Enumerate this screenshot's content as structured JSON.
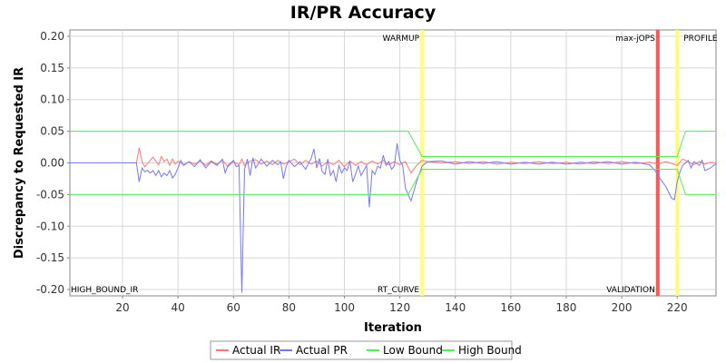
{
  "chart_data": {
    "type": "line",
    "title": "IR/PR Accuracy",
    "xlabel": "Iteration",
    "ylabel": "Discrepancy to Requested IR",
    "xlim": [
      1,
      234
    ],
    "ylim": [
      -0.21,
      0.21
    ],
    "xticks": [
      20,
      40,
      60,
      80,
      100,
      120,
      140,
      160,
      180,
      200,
      220
    ],
    "yticks": [
      -0.2,
      -0.15,
      -0.1,
      -0.05,
      0.0,
      0.05,
      0.1,
      0.15,
      0.2
    ],
    "grid": true,
    "legend_position": "bottom",
    "phase_markers": [
      {
        "label": "WARMUP",
        "x": 128,
        "color": "#ffff66",
        "label_pos": "top-left"
      },
      {
        "label": "RT_CURVE",
        "x": 128,
        "color": "#ffff66",
        "label_pos": "bottom-left"
      },
      {
        "label": "max-jOPS",
        "x": 213,
        "color": "#ff4444",
        "label_pos": "top-left"
      },
      {
        "label": "VALIDATION",
        "x": 213,
        "color": "#ff4444",
        "label_pos": "bottom-left"
      },
      {
        "label": "PROFILE",
        "x": 220,
        "color": "#ffff66",
        "label_pos": "top-right"
      },
      {
        "label": "HIGH_BOUND_IR",
        "x": 1,
        "color": "#000000",
        "label_pos": "bottom-right"
      }
    ],
    "series": [
      {
        "name": "Actual IR",
        "color": "#ff7777",
        "points": [
          [
            1,
            0
          ],
          [
            25,
            0
          ],
          [
            26,
            0.024
          ],
          [
            27,
            0.002
          ],
          [
            28,
            -0.006
          ],
          [
            30,
            0.004
          ],
          [
            31,
            0.009
          ],
          [
            32,
            0.003
          ],
          [
            33,
            -0.003
          ],
          [
            34,
            0.01
          ],
          [
            35,
            0.002
          ],
          [
            36,
            0.006
          ],
          [
            37,
            -0.004
          ],
          [
            38,
            0.006
          ],
          [
            39,
            -0.002
          ],
          [
            40,
            0.003
          ],
          [
            42,
            -0.003
          ],
          [
            44,
            0.002
          ],
          [
            46,
            -0.002
          ],
          [
            48,
            0.003
          ],
          [
            50,
            -0.004
          ],
          [
            52,
            0.003
          ],
          [
            54,
            -0.002
          ],
          [
            56,
            0.004
          ],
          [
            58,
            -0.006
          ],
          [
            60,
            0.002
          ],
          [
            62,
            -0.003
          ],
          [
            63,
            0.006
          ],
          [
            64,
            -0.004
          ],
          [
            66,
            0.003
          ],
          [
            68,
            0.005
          ],
          [
            70,
            -0.002
          ],
          [
            72,
            0.003
          ],
          [
            74,
            -0.003
          ],
          [
            76,
            0.004
          ],
          [
            78,
            -0.002
          ],
          [
            80,
            0.002
          ],
          [
            82,
            0.006
          ],
          [
            84,
            -0.003
          ],
          [
            86,
            0.004
          ],
          [
            88,
            -0.002
          ],
          [
            90,
            0.003
          ],
          [
            92,
            -0.005
          ],
          [
            94,
            0.002
          ],
          [
            96,
            -0.003
          ],
          [
            98,
            0.004
          ],
          [
            100,
            -0.006
          ],
          [
            102,
            0.003
          ],
          [
            104,
            -0.004
          ],
          [
            106,
            0.002
          ],
          [
            108,
            -0.003
          ],
          [
            110,
            0.003
          ],
          [
            112,
            -0.002
          ],
          [
            114,
            0.004
          ],
          [
            116,
            -0.003
          ],
          [
            118,
            0.002
          ],
          [
            120,
            -0.003
          ],
          [
            122,
            0.002
          ],
          [
            124,
            -0.016
          ],
          [
            126,
            -0.004
          ],
          [
            128,
            0.004
          ],
          [
            130,
            0.002
          ],
          [
            135,
            0
          ],
          [
            140,
            0.002
          ],
          [
            145,
            -0.001
          ],
          [
            150,
            0.002
          ],
          [
            155,
            -0.002
          ],
          [
            160,
            0.001
          ],
          [
            165,
            -0.001
          ],
          [
            170,
            0.002
          ],
          [
            175,
            -0.001
          ],
          [
            180,
            0.001
          ],
          [
            185,
            -0.002
          ],
          [
            190,
            0.002
          ],
          [
            195,
            -0.001
          ],
          [
            200,
            0.002
          ],
          [
            205,
            -0.001
          ],
          [
            210,
            0.001
          ],
          [
            213,
            -0.002
          ],
          [
            216,
            0.002
          ],
          [
            220,
            -0.004
          ],
          [
            222,
            0.006
          ],
          [
            224,
            0.002
          ],
          [
            226,
            -0.003
          ],
          [
            228,
            0.002
          ],
          [
            230,
            -0.002
          ],
          [
            232,
            0.001
          ],
          [
            234,
            0
          ]
        ]
      },
      {
        "name": "Actual PR",
        "color": "#7777ff",
        "points": [
          [
            1,
            0
          ],
          [
            25,
            0
          ],
          [
            26,
            -0.03
          ],
          [
            27,
            -0.008
          ],
          [
            28,
            -0.014
          ],
          [
            29,
            -0.012
          ],
          [
            30,
            -0.016
          ],
          [
            31,
            -0.012
          ],
          [
            32,
            -0.02
          ],
          [
            33,
            -0.012
          ],
          [
            34,
            -0.022
          ],
          [
            35,
            -0.016
          ],
          [
            36,
            -0.02
          ],
          [
            37,
            -0.012
          ],
          [
            38,
            -0.024
          ],
          [
            39,
            -0.018
          ],
          [
            40,
            -0.008
          ],
          [
            41,
            0.004
          ],
          [
            42,
            -0.004
          ],
          [
            44,
            0.002
          ],
          [
            46,
            -0.006
          ],
          [
            48,
            0.005
          ],
          [
            50,
            -0.008
          ],
          [
            52,
            0.002
          ],
          [
            54,
            -0.004
          ],
          [
            56,
            0.006
          ],
          [
            57,
            -0.016
          ],
          [
            58,
            -0.004
          ],
          [
            60,
            0.004
          ],
          [
            61,
            -0.006
          ],
          [
            62,
            -0.004
          ],
          [
            63,
            -0.205
          ],
          [
            64,
            -0.01
          ],
          [
            65,
            0.006
          ],
          [
            66,
            -0.02
          ],
          [
            67,
            0.008
          ],
          [
            68,
            -0.008
          ],
          [
            70,
            0.006
          ],
          [
            72,
            -0.005
          ],
          [
            74,
            0.004
          ],
          [
            76,
            -0.003
          ],
          [
            77,
            0.002
          ],
          [
            78,
            -0.025
          ],
          [
            79,
            -0.005
          ],
          [
            80,
            0.004
          ],
          [
            82,
            -0.006
          ],
          [
            84,
            0.002
          ],
          [
            86,
            -0.01
          ],
          [
            88,
            0.007
          ],
          [
            89,
            0.022
          ],
          [
            90,
            -0.008
          ],
          [
            91,
            0.007
          ],
          [
            92,
            -0.014
          ],
          [
            93,
            -0.018
          ],
          [
            94,
            0.006
          ],
          [
            95,
            -0.02
          ],
          [
            96,
            -0.012
          ],
          [
            97,
            -0.03
          ],
          [
            98,
            -0.004
          ],
          [
            99,
            -0.016
          ],
          [
            100,
            -0.008
          ],
          [
            101,
            -0.012
          ],
          [
            102,
            0.003
          ],
          [
            103,
            -0.03
          ],
          [
            104,
            -0.018
          ],
          [
            105,
            -0.005
          ],
          [
            106,
            -0.02
          ],
          [
            107,
            -0.012
          ],
          [
            108,
            -0.004
          ],
          [
            109,
            -0.07
          ],
          [
            110,
            -0.012
          ],
          [
            111,
            -0.018
          ],
          [
            112,
            -0.005
          ],
          [
            113,
            -0.008
          ],
          [
            114,
            0.012
          ],
          [
            115,
            -0.004
          ],
          [
            116,
            0.002
          ],
          [
            117,
            -0.01
          ],
          [
            118,
            -0.005
          ],
          [
            119,
            0.031
          ],
          [
            120,
            0.004
          ],
          [
            121,
            -0.004
          ],
          [
            122,
            -0.04
          ],
          [
            123,
            -0.05
          ],
          [
            124,
            -0.06
          ],
          [
            126,
            -0.03
          ],
          [
            128,
            -0.005
          ],
          [
            130,
            0.002
          ],
          [
            135,
            0.003
          ],
          [
            140,
            -0.002
          ],
          [
            145,
            0.002
          ],
          [
            150,
            -0.001
          ],
          [
            155,
            0.002
          ],
          [
            160,
            -0.002
          ],
          [
            165,
            0.001
          ],
          [
            170,
            -0.002
          ],
          [
            175,
            0.001
          ],
          [
            180,
            -0.002
          ],
          [
            185,
            0.001
          ],
          [
            190,
            -0.001
          ],
          [
            195,
            0.002
          ],
          [
            200,
            -0.002
          ],
          [
            205,
            0.001
          ],
          [
            210,
            -0.003
          ],
          [
            212,
            -0.012
          ],
          [
            214,
            -0.026
          ],
          [
            216,
            -0.038
          ],
          [
            218,
            -0.056
          ],
          [
            219,
            -0.058
          ],
          [
            220,
            -0.03
          ],
          [
            221,
            -0.014
          ],
          [
            222,
            -0.004
          ],
          [
            224,
            0.004
          ],
          [
            225,
            -0.008
          ],
          [
            226,
            0.002
          ],
          [
            228,
            -0.004
          ],
          [
            229,
            0.004
          ],
          [
            230,
            -0.012
          ],
          [
            232,
            -0.008
          ],
          [
            234,
            -0.001
          ]
        ]
      },
      {
        "name": "Low Bound",
        "color": "#55ee55",
        "points": [
          [
            1,
            -0.05
          ],
          [
            123,
            -0.05
          ],
          [
            128,
            -0.01
          ],
          [
            220,
            -0.01
          ],
          [
            223,
            -0.05
          ],
          [
            234,
            -0.05
          ]
        ]
      },
      {
        "name": "High Bound",
        "color": "#55ee55",
        "points": [
          [
            1,
            0.05
          ],
          [
            123,
            0.05
          ],
          [
            128,
            0.01
          ],
          [
            220,
            0.01
          ],
          [
            223,
            0.05
          ],
          [
            234,
            0.05
          ]
        ]
      }
    ]
  }
}
